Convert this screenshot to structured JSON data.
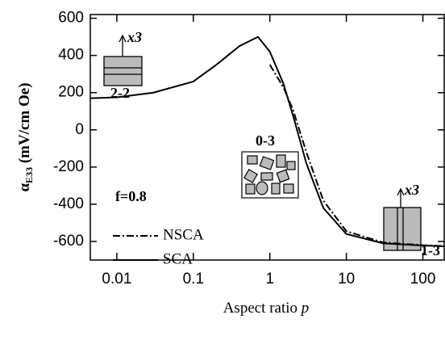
{
  "chart_data": {
    "type": "line",
    "x_label": "Aspect ratio",
    "x_label_var": "p",
    "y_label": "α",
    "y_label_sub": "E33",
    "y_label_rest": "(mV/cm Oe)",
    "xscale": "log",
    "xlim": [
      0.0045,
      190
    ],
    "ylim": [
      -700,
      620
    ],
    "xticks": [
      0.01,
      0.1,
      1,
      10,
      100
    ],
    "yticks": [
      600,
      400,
      200,
      0,
      -200,
      -400,
      -600
    ],
    "series": [
      {
        "name": "NSCA",
        "color": "#000000",
        "dash": "dashdot",
        "x": [
          1,
          1.5,
          2,
          3,
          5,
          10,
          30,
          100,
          190
        ],
        "values": [
          350,
          230,
          110,
          -120,
          -380,
          -545,
          -605,
          -620,
          -625
        ]
      },
      {
        "name": "SCA",
        "color": "#000000",
        "dash": "solid",
        "x": [
          0.0045,
          0.01,
          0.03,
          0.1,
          0.2,
          0.4,
          0.7,
          1,
          1.5,
          2,
          3,
          5,
          10,
          30,
          100,
          190
        ],
        "values": [
          170,
          175,
          200,
          260,
          350,
          450,
          500,
          420,
          250,
          80,
          -180,
          -420,
          -560,
          -610,
          -622,
          -626
        ]
      }
    ],
    "legend_position": "lower left",
    "annotations": [
      "2-2",
      "0-3",
      "1-3",
      "x3",
      "x3",
      "f=0.8"
    ]
  }
}
